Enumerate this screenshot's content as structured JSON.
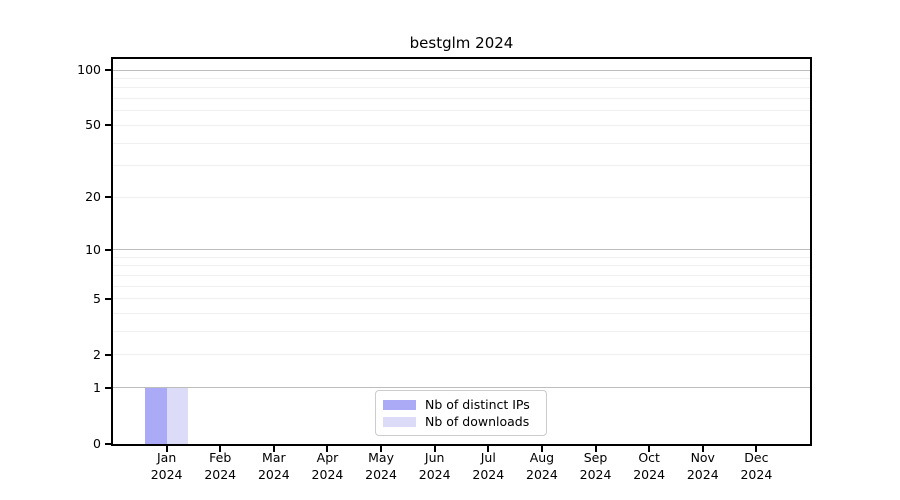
{
  "title": "bestglm 2024",
  "chart_data": {
    "type": "bar",
    "title": "bestglm 2024",
    "categories": [
      "Jan",
      "Feb",
      "Mar",
      "Apr",
      "May",
      "Jun",
      "Jul",
      "Aug",
      "Sep",
      "Oct",
      "Nov",
      "Dec"
    ],
    "year_label": "2024",
    "series": [
      {
        "name": "Nb of distinct IPs",
        "color": "#aaaaf6",
        "values": [
          1,
          0,
          0,
          0,
          0,
          0,
          0,
          0,
          0,
          0,
          0,
          0
        ]
      },
      {
        "name": "Nb of downloads",
        "color": "#dcdcf8",
        "values": [
          1,
          0,
          0,
          0,
          0,
          0,
          0,
          0,
          0,
          0,
          0,
          0
        ]
      }
    ],
    "y_scale": "log10(1+v)",
    "ylim": [
      0,
      100
    ],
    "y_tick_labels": [
      0,
      1,
      2,
      5,
      10,
      20,
      50,
      100
    ],
    "y_major_gridlines": [
      1,
      10,
      100
    ],
    "y_minor_gridlines": [
      2,
      3,
      4,
      5,
      6,
      7,
      8,
      9,
      20,
      30,
      40,
      50,
      60,
      70,
      80,
      90
    ],
    "grid": true,
    "legend_position": "lower center",
    "colors": {
      "major_grid": "#bdbdbd",
      "minor_grid": "#efefef",
      "spine": "#000000",
      "background": "#ffffff"
    }
  }
}
